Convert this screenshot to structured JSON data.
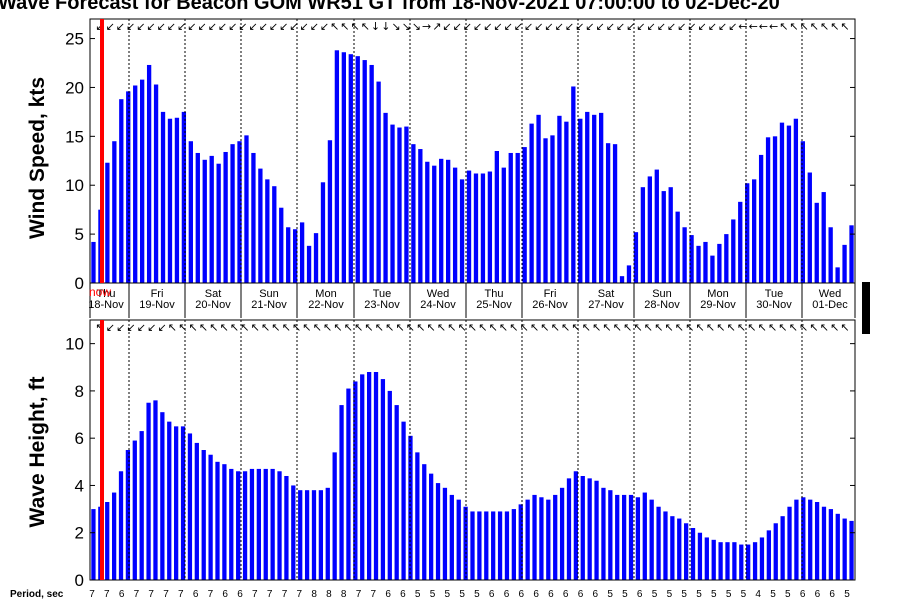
{
  "chart_data": {
    "title": "Wave Forecast for Beacon GOM WR51 GT from 18-Nov-2021 07:00:00 to 02-Dec-20",
    "now_label": "now",
    "day_labels": [
      {
        "dow": "Thu",
        "date": "18-Nov"
      },
      {
        "dow": "Fri",
        "date": "19-Nov"
      },
      {
        "dow": "Sat",
        "date": "20-Nov"
      },
      {
        "dow": "Sun",
        "date": "21-Nov"
      },
      {
        "dow": "Mon",
        "date": "22-Nov"
      },
      {
        "dow": "Tue",
        "date": "23-Nov"
      },
      {
        "dow": "Wed",
        "date": "24-Nov"
      },
      {
        "dow": "Thu",
        "date": "25-Nov"
      },
      {
        "dow": "Fri",
        "date": "26-Nov"
      },
      {
        "dow": "Sat",
        "date": "27-Nov"
      },
      {
        "dow": "Sun",
        "date": "28-Nov"
      },
      {
        "dow": "Mon",
        "date": "29-Nov"
      },
      {
        "dow": "Tue",
        "date": "30-Nov"
      },
      {
        "dow": "Wed",
        "date": "01-Dec"
      }
    ],
    "wind": {
      "type": "bar",
      "ylabel": "Wind Speed, kts",
      "ylim": [
        0,
        27
      ],
      "yticks": [
        0,
        5,
        10,
        15,
        20,
        25
      ],
      "color": "#0000ff",
      "values": [
        4.2,
        7.5,
        12.3,
        14.5,
        18.8,
        19.6,
        20.2,
        20.8,
        22.3,
        20.3,
        17.5,
        16.8,
        16.9,
        17.5,
        14.5,
        13.3,
        12.6,
        13.0,
        12.2,
        13.4,
        14.2,
        14.5,
        15.1,
        13.3,
        11.7,
        10.6,
        9.9,
        7.7,
        5.7,
        5.5,
        6.2,
        3.8,
        5.1,
        10.3,
        14.6,
        23.8,
        23.6,
        23.4,
        23.2,
        22.8,
        22.3,
        20.6,
        17.4,
        16.2,
        15.9,
        16.0,
        14.2,
        13.7,
        12.4,
        12.0,
        12.7,
        12.6,
        11.8,
        10.6,
        11.5,
        11.2,
        11.2,
        11.4,
        13.5,
        11.8,
        13.3,
        13.3,
        13.9,
        16.3,
        17.2,
        14.8,
        15.1,
        17.1,
        16.5,
        20.1,
        16.8,
        17.5,
        17.2,
        17.4,
        14.3,
        14.2,
        0.7,
        1.8,
        5.2,
        9.8,
        10.9,
        11.6,
        9.4,
        9.8,
        7.3,
        5.7,
        4.9,
        3.8,
        4.2,
        2.8,
        4.0,
        5.0,
        6.5,
        8.3,
        10.2,
        10.6,
        13.1,
        14.9,
        15.0,
        16.4,
        16.1,
        16.8,
        14.5,
        11.3,
        8.2,
        9.3,
        5.7,
        1.6,
        3.9,
        5.9
      ],
      "direction_arrows": [
        "↙",
        "↙",
        "↙",
        "↙",
        "↙",
        "↙",
        "↙",
        "↙",
        "↙",
        "↙",
        "↙",
        "↙",
        "↙",
        "↙",
        "↙",
        "↙",
        "↙",
        "↙",
        "↙",
        "↙",
        "↙",
        "↙",
        "↙",
        "↖",
        "↖",
        "↖",
        "↖",
        "↓",
        "↓",
        "↘",
        "↘",
        "↘",
        "→",
        "↗",
        "↙",
        "↙",
        "↙",
        "↙",
        "↙",
        "↙",
        "↙",
        "↙",
        "↙",
        "↙",
        "↙",
        "↙",
        "↙",
        "↙",
        "↙",
        "↙",
        "↙",
        "↙",
        "↙",
        "↙",
        "↙",
        "↙",
        "↙",
        "↙",
        "↙",
        "↙",
        "↙",
        "↙",
        "↙",
        "←",
        "←",
        "←",
        "←",
        "↖",
        "↖",
        "↖",
        "↖",
        "↖",
        "↖",
        "↖"
      ]
    },
    "wave": {
      "type": "bar",
      "ylabel": "Wave Height, ft",
      "ylim": [
        0,
        11
      ],
      "yticks": [
        0,
        2,
        4,
        6,
        8,
        10
      ],
      "color": "#0000ff",
      "values": [
        3.0,
        3.1,
        3.3,
        3.7,
        4.6,
        5.5,
        5.9,
        6.3,
        7.5,
        7.6,
        7.1,
        6.7,
        6.5,
        6.5,
        6.2,
        5.8,
        5.5,
        5.3,
        5.0,
        4.9,
        4.7,
        4.6,
        4.6,
        4.7,
        4.7,
        4.7,
        4.7,
        4.6,
        4.4,
        4.0,
        3.8,
        3.8,
        3.8,
        3.8,
        3.9,
        5.4,
        7.4,
        8.1,
        8.4,
        8.7,
        8.8,
        8.8,
        8.5,
        8.0,
        7.4,
        6.7,
        6.1,
        5.4,
        4.9,
        4.5,
        4.1,
        3.9,
        3.6,
        3.4,
        3.1,
        2.9,
        2.9,
        2.9,
        2.9,
        2.9,
        2.9,
        3.0,
        3.2,
        3.4,
        3.6,
        3.5,
        3.4,
        3.6,
        3.9,
        4.3,
        4.6,
        4.4,
        4.3,
        4.2,
        3.9,
        3.8,
        3.6,
        3.6,
        3.6,
        3.5,
        3.7,
        3.4,
        3.1,
        2.9,
        2.7,
        2.6,
        2.4,
        2.2,
        2.0,
        1.8,
        1.7,
        1.6,
        1.6,
        1.6,
        1.5,
        1.5,
        1.6,
        1.8,
        2.1,
        2.4,
        2.7,
        3.1,
        3.4,
        3.5,
        3.4,
        3.3,
        3.1,
        3.0,
        2.8,
        2.6,
        2.5
      ],
      "direction_arrows": [
        "↖",
        "↙",
        "↙",
        "↙",
        "↙",
        "↙",
        "↙",
        "↖",
        "↖",
        "↖",
        "↖",
        "↖",
        "↖",
        "↖",
        "↖",
        "↖",
        "↖",
        "↖",
        "↖",
        "↖",
        "↖",
        "↖",
        "↖",
        "↖",
        "↖",
        "↖",
        "↖",
        "↖",
        "↖",
        "↖",
        "↖",
        "↖",
        "↖",
        "↖",
        "↖",
        "↖",
        "↖",
        "↖",
        "↖",
        "↖",
        "↖",
        "↖",
        "↖",
        "↖",
        "↖",
        "↖",
        "↖",
        "↖",
        "↖",
        "↖",
        "↖",
        "↖",
        "↖",
        "↖",
        "↖",
        "↖",
        "↖",
        "↖",
        "↖",
        "↖",
        "↖",
        "↖",
        "↖",
        "↖",
        "↖",
        "↖",
        "↖",
        "↖",
        "↖",
        "↖",
        "↖",
        "↖",
        "↖"
      ]
    },
    "period": {
      "label": "Period, sec",
      "values": [
        7,
        7,
        6,
        7,
        7,
        7,
        7,
        6,
        7,
        6,
        6,
        7,
        7,
        7,
        7,
        8,
        8,
        8,
        7,
        7,
        6,
        6,
        5,
        5,
        5,
        5,
        5,
        6,
        6,
        6,
        6,
        6,
        6,
        6,
        6,
        5,
        5,
        6,
        5,
        5,
        5,
        5,
        5,
        5,
        5,
        4,
        5,
        5,
        6,
        6,
        6,
        5
      ]
    }
  }
}
